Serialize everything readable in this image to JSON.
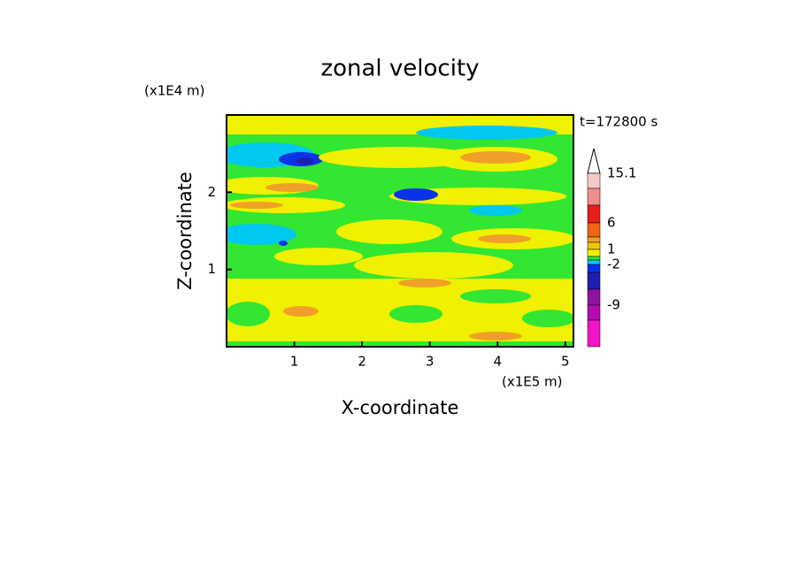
{
  "chart_data": {
    "type": "contour",
    "title": "zonal velocity",
    "x_label": "X-coordinate",
    "y_label": "Z-coordinate",
    "x_unit": "(x1E5 m)",
    "y_unit": "(x1E4 m)",
    "time_label": "t=172800 s",
    "xlim": [
      0,
      5.12
    ],
    "ylim": [
      0,
      3
    ],
    "xticks": [
      1,
      2,
      3,
      4,
      5
    ],
    "yticks": [
      1,
      2
    ],
    "colorbar": {
      "labels": [
        15.1,
        6,
        1,
        -2,
        -9
      ],
      "colors": [
        "#f5c8c8",
        "#f08c8c",
        "#e61e1e",
        "#f06414",
        "#f0a028",
        "#f0c800",
        "#f0f000",
        "#32e632",
        "#00c8f0",
        "#0a32e6",
        "#1e1eb4",
        "#8c14a0",
        "#b40ab4",
        "#f014c8"
      ]
    }
  }
}
